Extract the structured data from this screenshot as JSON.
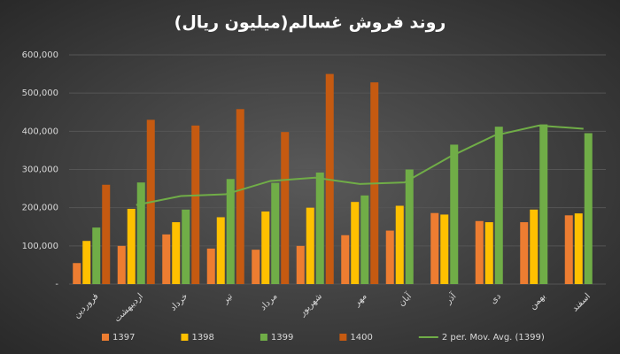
{
  "chart_data": {
    "type": "bar",
    "title": "روند فروش غسالم(میلیون ریال)",
    "categories": [
      "فروردین",
      "اردیبهشت",
      "خرداد",
      "تیر",
      "مرداد",
      "شهریور",
      "مهر",
      "آبان",
      "آذر",
      "دی",
      "بهمن",
      "اسفند"
    ],
    "series": [
      {
        "name": "1397",
        "color": "#ed7d31",
        "values": [
          55000,
          100000,
          130000,
          93000,
          90000,
          100000,
          128000,
          140000,
          186000,
          165000,
          162000,
          180000
        ]
      },
      {
        "name": "1398",
        "color": "#ffc000",
        "values": [
          113000,
          197000,
          162000,
          175000,
          190000,
          200000,
          215000,
          205000,
          182000,
          162000,
          195000,
          185000
        ]
      },
      {
        "name": "1399",
        "color": "#70ad47",
        "values": [
          148000,
          266000,
          195000,
          275000,
          265000,
          292000,
          232000,
          300000,
          365000,
          412000,
          418000,
          395000
        ]
      },
      {
        "name": "1400",
        "color": "#c55a11",
        "values": [
          260000,
          430000,
          415000,
          458000,
          398000,
          550000,
          528000,
          null,
          null,
          null,
          null,
          null
        ]
      },
      {
        "name": "2 per. Mov. Avg. (1399)",
        "color": "#70ad47",
        "type": "line",
        "values": [
          null,
          207000,
          230500,
          235000,
          270000,
          278500,
          262000,
          266000,
          332500,
          388500,
          415000,
          406500
        ]
      }
    ],
    "ylim": [
      0,
      600000
    ],
    "yticks": [
      {
        "value": 0,
        "label": "-"
      },
      {
        "value": 100000,
        "label": "100,000"
      },
      {
        "value": 200000,
        "label": "200,000"
      },
      {
        "value": 300000,
        "label": "300,000"
      },
      {
        "value": 400000,
        "label": "400,000"
      },
      {
        "value": 500000,
        "label": "500,000"
      },
      {
        "value": 600000,
        "label": "600,000"
      }
    ],
    "grid": true,
    "legend": "bottom"
  }
}
